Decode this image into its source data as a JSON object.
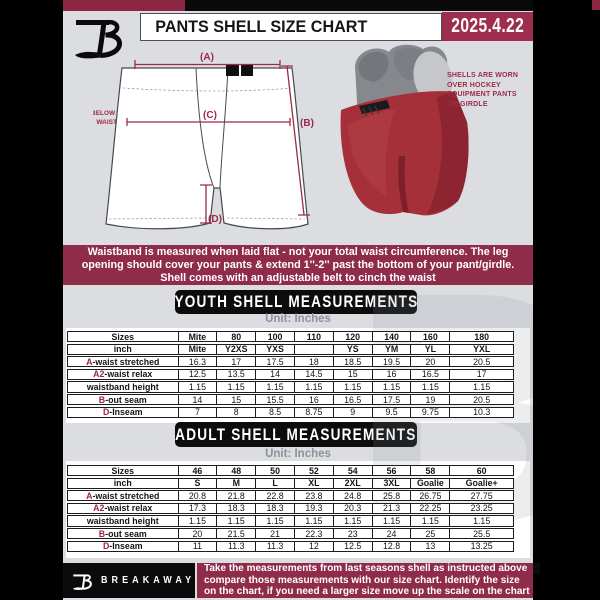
{
  "header": {
    "title": "PANTS SHELL SIZE CHART",
    "date": "2025.4.22"
  },
  "diagram": {
    "label_a": "(A)",
    "label_b": "(B)",
    "label_c": "(C)",
    "label_d": "(D)",
    "waist_note_line1": "7'' BELOW",
    "waist_note_line2": "WAIST"
  },
  "photo_note": {
    "lines": [
      "SHELLS ARE WORN",
      "OVER HOCKEY",
      "EQUIPMENT PANTS",
      "OR GIRDLE"
    ]
  },
  "info_bar": {
    "lines": [
      "Waistband is measured when laid flat - not your total waist circumference. The leg",
      "opening should cover your pants & extend 1''-2'' past the bottom of your pant/girdle.",
      "Shell comes with an adjustable belt to cinch the waist"
    ]
  },
  "youth": {
    "title": "YOUTH SHELL MEASUREMENTS",
    "unit": "Unit: Inches",
    "rows": [
      {
        "prefix": "",
        "label": "Sizes",
        "header": true,
        "values": [
          "Mite",
          "80",
          "100",
          "110",
          "120",
          "140",
          "160",
          "180"
        ]
      },
      {
        "prefix": "",
        "label": "inch",
        "header": true,
        "values": [
          "Mite",
          "Y2XS",
          "YXS",
          "",
          "YS",
          "YM",
          "YL",
          "YXL"
        ]
      },
      {
        "prefix": "A",
        "label": "-waist stretched",
        "header": false,
        "values": [
          "16.3",
          "17",
          "17.5",
          "18",
          "18.5",
          "19.5",
          "20",
          "20.5"
        ]
      },
      {
        "prefix": "A2",
        "label": "-waist relax",
        "header": false,
        "values": [
          "12.5",
          "13.5",
          "14",
          "14.5",
          "15",
          "16",
          "16.5",
          "17"
        ]
      },
      {
        "prefix": "",
        "label": "waistband height",
        "header": false,
        "values": [
          "1.15",
          "1.15",
          "1.15",
          "1.15",
          "1.15",
          "1.15",
          "1.15",
          "1.15"
        ]
      },
      {
        "prefix": "B",
        "label": "-out seam",
        "header": false,
        "values": [
          "14",
          "15",
          "15.5",
          "16",
          "16.5",
          "17.5",
          "19",
          "20.5"
        ]
      },
      {
        "prefix": "D",
        "label": "-Inseam",
        "header": false,
        "values": [
          "7",
          "8",
          "8.5",
          "8.75",
          "9",
          "9.5",
          "9.75",
          "10.3"
        ]
      }
    ]
  },
  "adult": {
    "title": "ADULT SHELL MEASUREMENTS",
    "unit": "Unit: Inches",
    "rows": [
      {
        "prefix": "",
        "label": "Sizes",
        "header": true,
        "values": [
          "46",
          "48",
          "50",
          "52",
          "54",
          "56",
          "58",
          "60"
        ]
      },
      {
        "prefix": "",
        "label": "inch",
        "header": true,
        "values": [
          "S",
          "M",
          "L",
          "XL",
          "2XL",
          "3XL",
          "Goalie",
          "Goalie+"
        ]
      },
      {
        "prefix": "A",
        "label": "-waist stretched",
        "header": false,
        "values": [
          "20.8",
          "21.8",
          "22.8",
          "23.8",
          "24.8",
          "25.8",
          "26.75",
          "27.75"
        ]
      },
      {
        "prefix": "A2",
        "label": "-waist relax",
        "header": false,
        "values": [
          "17.3",
          "18.3",
          "18.3",
          "19.3",
          "20.3",
          "21.3",
          "22.25",
          "23.25"
        ]
      },
      {
        "prefix": "",
        "label": "waistband height",
        "header": false,
        "values": [
          "1.15",
          "1.15",
          "1.15",
          "1.15",
          "1.15",
          "1.15",
          "1.15",
          "1.15"
        ]
      },
      {
        "prefix": "B",
        "label": "-out seam",
        "header": false,
        "values": [
          "20",
          "21.5",
          "21",
          "22.3",
          "23",
          "24",
          "25",
          "25.5"
        ]
      },
      {
        "prefix": "D",
        "label": "-Inseam",
        "header": false,
        "values": [
          "11",
          "11.3",
          "11.3",
          "12",
          "12.5",
          "12.8",
          "13",
          "13.25"
        ]
      }
    ]
  },
  "footer": {
    "brand": "BREAKAWAY",
    "lines": [
      "Take the measurements from last seasons shell as instructed above",
      "compare those measurements  with our size chart. Identify the size",
      "on the chart, if you need a larger size move up the scale on the chart"
    ]
  },
  "colors": {
    "maroon": "#8e2c4a",
    "maroon_bright": "#9e2e4d",
    "background_gray": "#dcdde1",
    "black": "#0b0b0b",
    "shell_red": "#a6303a",
    "accent_letter_red": "#9b2742"
  }
}
